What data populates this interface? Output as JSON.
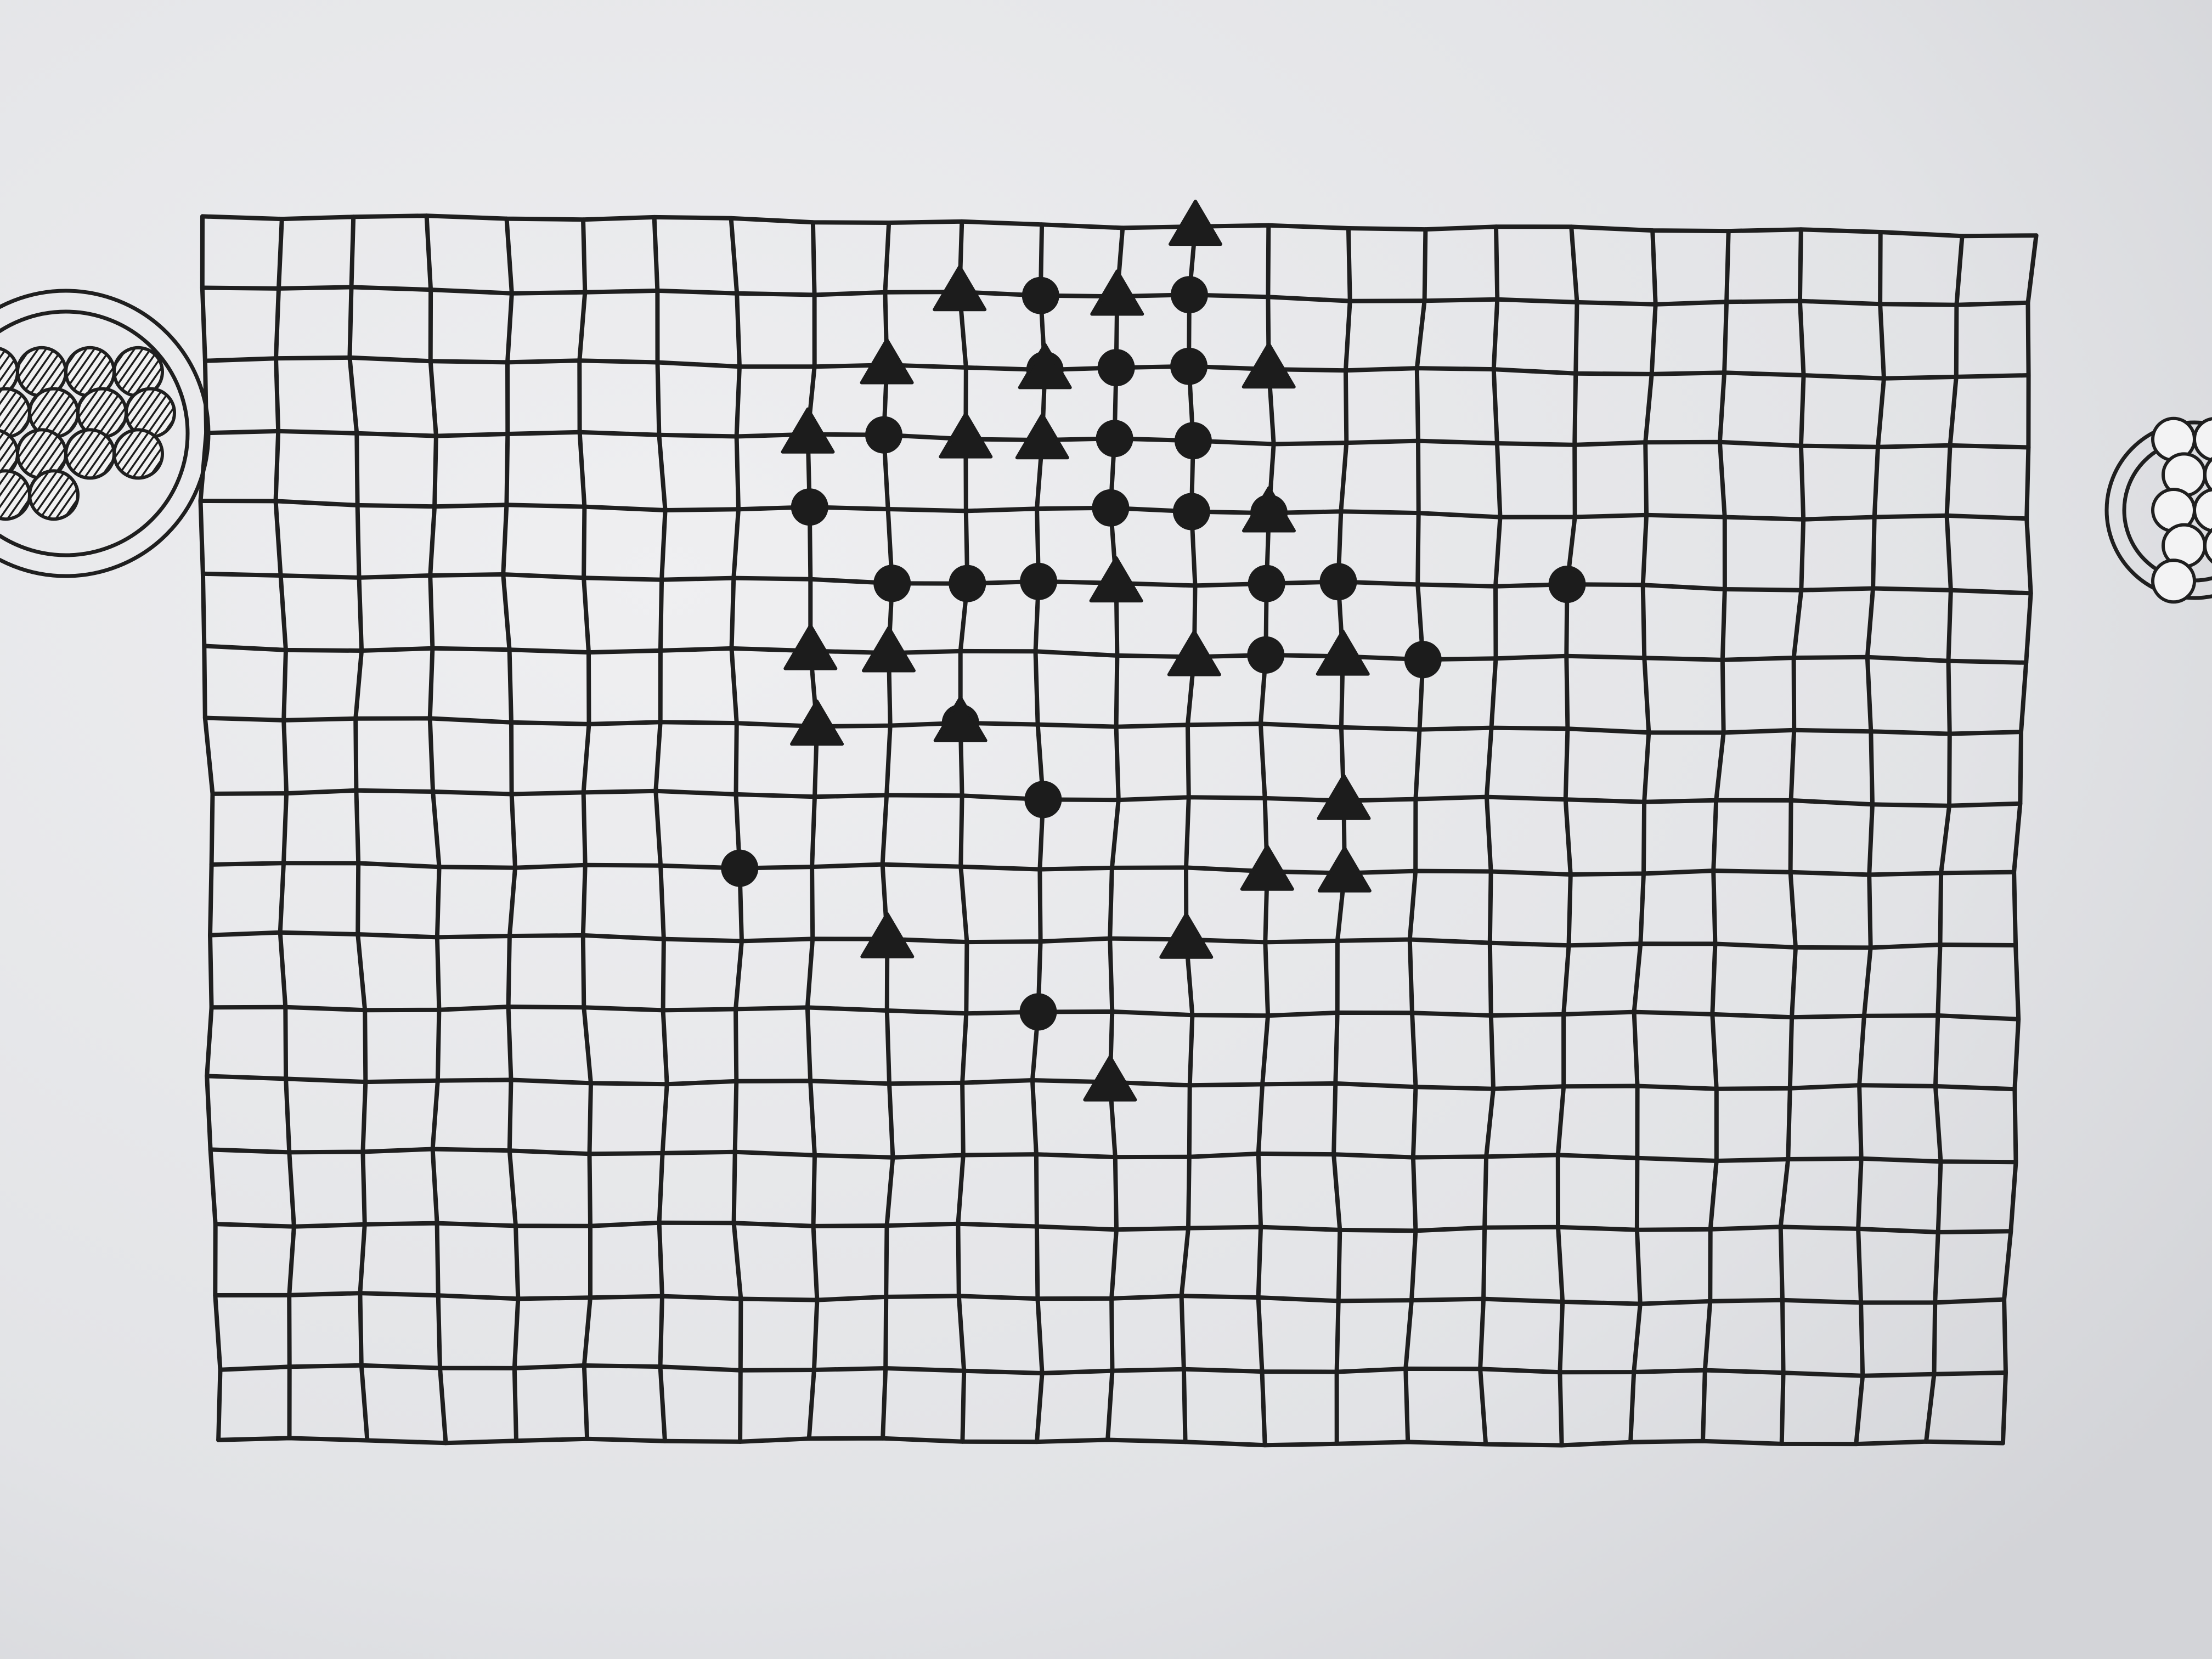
{
  "game": {
    "board": {
      "columns": 24,
      "rows": 17,
      "line_color": "#1f1f1f"
    },
    "pieces": {
      "color": "#1c1c1c",
      "circles": [
        [
          7,
          9
        ],
        [
          8,
          4
        ],
        [
          9,
          3
        ],
        [
          9,
          5
        ],
        [
          10,
          5
        ],
        [
          10,
          7
        ],
        [
          11,
          1
        ],
        [
          11,
          2
        ],
        [
          11,
          5
        ],
        [
          11,
          8
        ],
        [
          11,
          11
        ],
        [
          12,
          2
        ],
        [
          12,
          3
        ],
        [
          12,
          4
        ],
        [
          13,
          1
        ],
        [
          13,
          2
        ],
        [
          13,
          3
        ],
        [
          13,
          4
        ],
        [
          14,
          4
        ],
        [
          14,
          5
        ],
        [
          14,
          6
        ],
        [
          15,
          5
        ],
        [
          16,
          6
        ],
        [
          18,
          5
        ]
      ],
      "triangles": [
        [
          8,
          3
        ],
        [
          8,
          6
        ],
        [
          8,
          7
        ],
        [
          9,
          2
        ],
        [
          9,
          6
        ],
        [
          9,
          10
        ],
        [
          10,
          1
        ],
        [
          10,
          3
        ],
        [
          10,
          7
        ],
        [
          11,
          2
        ],
        [
          11,
          3
        ],
        [
          12,
          1
        ],
        [
          12,
          5
        ],
        [
          12,
          12
        ],
        [
          13,
          0
        ],
        [
          13,
          6
        ],
        [
          13,
          10
        ],
        [
          14,
          2
        ],
        [
          14,
          4
        ],
        [
          14,
          9
        ],
        [
          15,
          6
        ],
        [
          15,
          8
        ],
        [
          15,
          9
        ]
      ]
    },
    "bowls": {
      "left": {
        "icon": "hatched-stones-bowl-icon",
        "stones": 14,
        "fill": "hatched"
      },
      "right": {
        "icon": "hollow-stones-bowl-icon",
        "stones": 9,
        "fill": "hollow"
      }
    }
  }
}
